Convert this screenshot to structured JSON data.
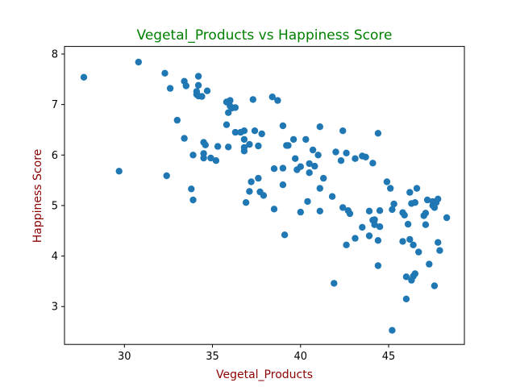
{
  "chart_data": {
    "type": "scatter",
    "title": "Vegetal_Products vs Happiness Score",
    "xlabel": "Vegetal_Products",
    "ylabel": "Happiness Score",
    "xlim": [
      26.6,
      49.3
    ],
    "ylim": [
      2.25,
      8.15
    ],
    "xticks": [
      30,
      35,
      40,
      45
    ],
    "yticks": [
      3,
      4,
      5,
      6,
      7,
      8
    ],
    "grid": false,
    "legend": "none",
    "marker_color": "#1f77b4",
    "title_color": "#008000",
    "label_color": "#8b0000",
    "points": [
      [
        27.7,
        7.54
      ],
      [
        29.7,
        5.68
      ],
      [
        30.8,
        7.84
      ],
      [
        32.3,
        7.62
      ],
      [
        32.6,
        7.32
      ],
      [
        32.4,
        5.59
      ],
      [
        33.0,
        6.69
      ],
      [
        33.4,
        6.33
      ],
      [
        33.4,
        7.46
      ],
      [
        33.5,
        7.37
      ],
      [
        33.8,
        5.33
      ],
      [
        33.9,
        5.11
      ],
      [
        33.9,
        6.0
      ],
      [
        34.1,
        7.2
      ],
      [
        34.1,
        7.26
      ],
      [
        34.2,
        7.38
      ],
      [
        34.2,
        7.56
      ],
      [
        34.2,
        7.17
      ],
      [
        34.4,
        7.16
      ],
      [
        34.5,
        6.25
      ],
      [
        34.5,
        6.03
      ],
      [
        34.5,
        5.94
      ],
      [
        34.6,
        6.2
      ],
      [
        34.7,
        7.27
      ],
      [
        34.9,
        5.94
      ],
      [
        35.2,
        5.89
      ],
      [
        35.3,
        6.17
      ],
      [
        35.8,
        6.6
      ],
      [
        35.8,
        7.05
      ],
      [
        35.9,
        6.84
      ],
      [
        35.9,
        6.16
      ],
      [
        36.0,
        7.08
      ],
      [
        36.0,
        6.97
      ],
      [
        36.1,
        6.93
      ],
      [
        36.3,
        6.94
      ],
      [
        36.3,
        6.45
      ],
      [
        36.6,
        6.45
      ],
      [
        36.8,
        6.48
      ],
      [
        36.8,
        6.31
      ],
      [
        36.8,
        6.15
      ],
      [
        36.8,
        6.08
      ],
      [
        36.9,
        5.06
      ],
      [
        37.1,
        6.21
      ],
      [
        37.1,
        5.28
      ],
      [
        37.2,
        5.47
      ],
      [
        37.3,
        7.1
      ],
      [
        37.4,
        6.48
      ],
      [
        37.6,
        6.18
      ],
      [
        37.6,
        5.54
      ],
      [
        37.7,
        5.27
      ],
      [
        37.8,
        6.42
      ],
      [
        37.9,
        5.2
      ],
      [
        38.4,
        7.15
      ],
      [
        38.5,
        4.93
      ],
      [
        38.5,
        5.73
      ],
      [
        38.7,
        7.08
      ],
      [
        39.0,
        5.41
      ],
      [
        39.0,
        5.74
      ],
      [
        39.0,
        6.58
      ],
      [
        39.1,
        4.42
      ],
      [
        39.2,
        6.19
      ],
      [
        39.3,
        6.19
      ],
      [
        39.6,
        6.31
      ],
      [
        39.7,
        5.93
      ],
      [
        39.8,
        5.71
      ],
      [
        40.0,
        5.77
      ],
      [
        40.0,
        4.87
      ],
      [
        40.3,
        6.31
      ],
      [
        40.4,
        5.08
      ],
      [
        40.5,
        5.65
      ],
      [
        40.5,
        5.83
      ],
      [
        40.7,
        6.1
      ],
      [
        40.8,
        5.78
      ],
      [
        41.0,
        6.0
      ],
      [
        41.1,
        6.56
      ],
      [
        41.1,
        5.34
      ],
      [
        41.1,
        4.89
      ],
      [
        41.3,
        5.54
      ],
      [
        41.8,
        5.18
      ],
      [
        41.9,
        3.46
      ],
      [
        42.0,
        6.06
      ],
      [
        42.3,
        5.89
      ],
      [
        42.4,
        6.48
      ],
      [
        42.4,
        4.96
      ],
      [
        42.6,
        6.04
      ],
      [
        42.6,
        4.22
      ],
      [
        42.7,
        4.9
      ],
      [
        42.8,
        4.84
      ],
      [
        43.1,
        4.35
      ],
      [
        43.1,
        5.93
      ],
      [
        43.5,
        5.98
      ],
      [
        43.5,
        4.57
      ],
      [
        43.7,
        5.96
      ],
      [
        43.9,
        4.4
      ],
      [
        43.9,
        4.89
      ],
      [
        44.1,
        4.71
      ],
      [
        44.1,
        5.84
      ],
      [
        44.2,
        4.62
      ],
      [
        44.2,
        4.72
      ],
      [
        44.4,
        4.31
      ],
      [
        44.4,
        3.81
      ],
      [
        44.4,
        6.43
      ],
      [
        44.5,
        4.58
      ],
      [
        44.5,
        4.9
      ],
      [
        44.9,
        5.47
      ],
      [
        45.1,
        5.34
      ],
      [
        45.2,
        4.92
      ],
      [
        45.2,
        2.53
      ],
      [
        45.3,
        5.03
      ],
      [
        45.8,
        4.29
      ],
      [
        45.8,
        4.86
      ],
      [
        45.9,
        4.81
      ],
      [
        46.0,
        3.59
      ],
      [
        46.0,
        3.15
      ],
      [
        46.1,
        4.63
      ],
      [
        46.2,
        4.33
      ],
      [
        46.2,
        5.26
      ],
      [
        46.3,
        3.52
      ],
      [
        46.3,
        5.04
      ],
      [
        46.4,
        3.6
      ],
      [
        46.4,
        4.22
      ],
      [
        46.5,
        3.65
      ],
      [
        46.5,
        5.06
      ],
      [
        46.6,
        5.34
      ],
      [
        46.7,
        4.08
      ],
      [
        47.0,
        4.8
      ],
      [
        47.1,
        4.62
      ],
      [
        47.1,
        4.85
      ],
      [
        47.2,
        5.11
      ],
      [
        47.3,
        3.84
      ],
      [
        47.5,
        5.08
      ],
      [
        47.5,
        5.0
      ],
      [
        47.6,
        4.96
      ],
      [
        47.6,
        3.41
      ],
      [
        47.7,
        5.06
      ],
      [
        47.8,
        5.13
      ],
      [
        47.8,
        4.27
      ],
      [
        47.9,
        4.11
      ],
      [
        48.3,
        4.76
      ]
    ]
  }
}
